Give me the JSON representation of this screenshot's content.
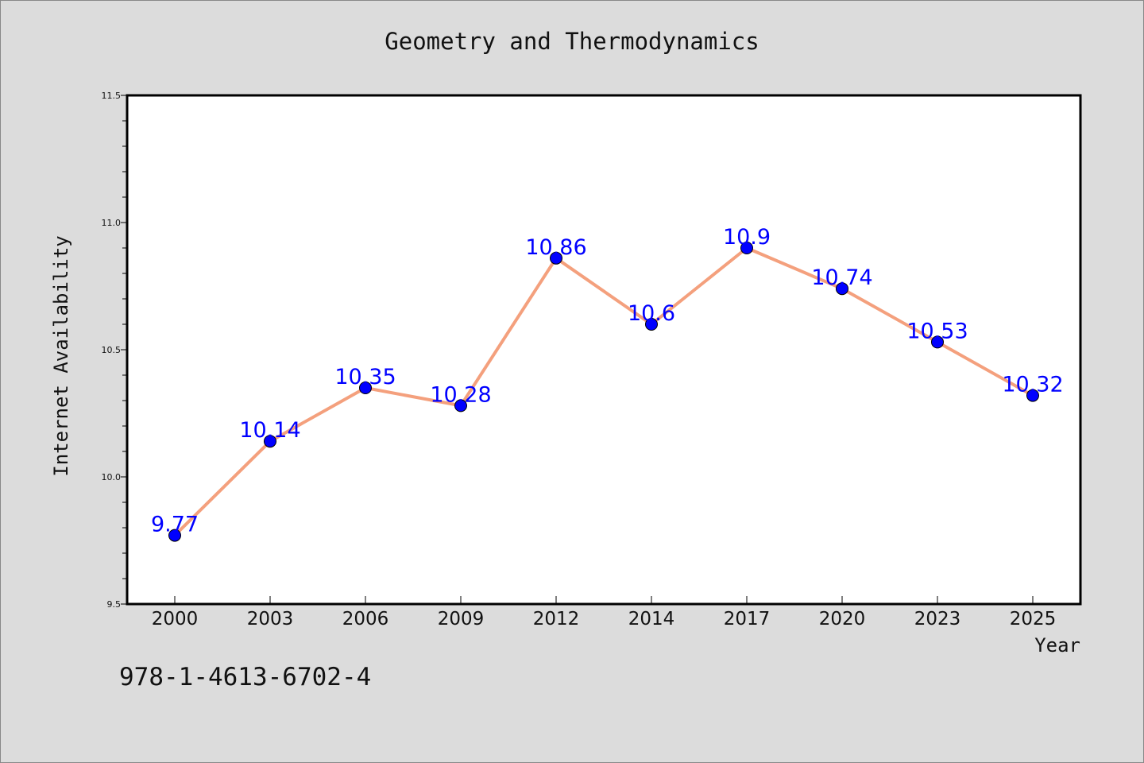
{
  "chart_data": {
    "type": "line",
    "title": "Geometry and Thermodynamics",
    "xlabel": "Year",
    "ylabel": "Internet Availability",
    "categories": [
      "2000",
      "2003",
      "2006",
      "2009",
      "2012",
      "2014",
      "2017",
      "2020",
      "2023",
      "2025"
    ],
    "series": [
      {
        "values": [
          9.77,
          10.14,
          10.35,
          10.28,
          10.86,
          10.6,
          10.9,
          10.74,
          10.53,
          10.32
        ]
      }
    ],
    "data_labels": [
      "9.77",
      "10.14",
      "10.35",
      "10.28",
      "10.86",
      "10.6",
      "10.9",
      "10.74",
      "10.53",
      "10.32"
    ],
    "ylim": [
      9.5,
      11.5
    ],
    "y_ticks": [
      "9.5",
      "10.0",
      "10.5",
      "11.0",
      "11.5"
    ],
    "grid": false,
    "colors": {
      "line": "#f4a07d",
      "marker": "#0000ff",
      "label": "#0000ff",
      "background": "#dcdcdc",
      "plot": "#ffffff"
    }
  },
  "footer": {
    "isbn": "978-1-4613-6702-4"
  }
}
